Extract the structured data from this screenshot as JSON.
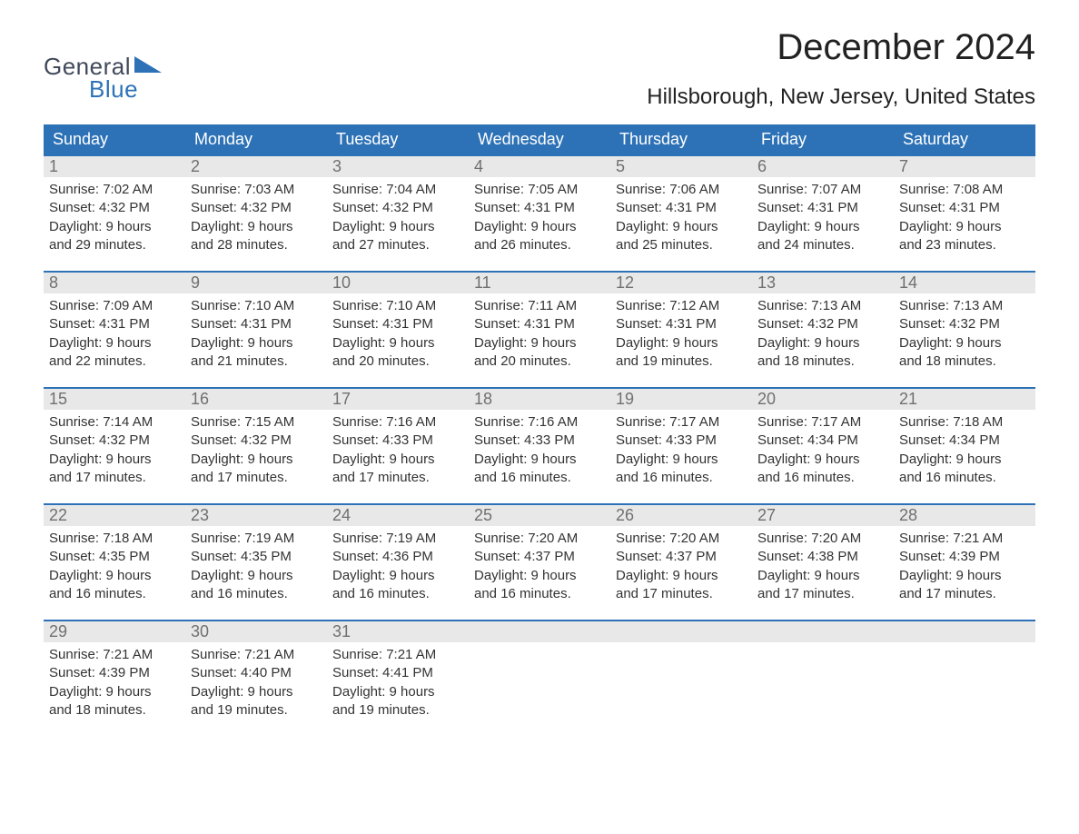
{
  "brand": {
    "word1": "General",
    "word2": "Blue"
  },
  "title": {
    "month": "December 2024",
    "location": "Hillsborough, New Jersey, United States"
  },
  "style": {
    "header_bg": "#2d72b7",
    "header_text": "#ffffff",
    "daynum_bg": "#e8e8e8",
    "daynum_text": "#707070",
    "week_border": "#2d72b7",
    "body_text": "#333333",
    "title_fontsize": 40,
    "loc_fontsize": 24,
    "dow_fontsize": 18,
    "cell_fontsize": 15,
    "page_bg": "#ffffff"
  },
  "days_of_week": [
    "Sunday",
    "Monday",
    "Tuesday",
    "Wednesday",
    "Thursday",
    "Friday",
    "Saturday"
  ],
  "weeks": [
    [
      {
        "n": "1",
        "sunrise": "Sunrise: 7:02 AM",
        "sunset": "Sunset: 4:32 PM",
        "dl1": "Daylight: 9 hours",
        "dl2": "and 29 minutes."
      },
      {
        "n": "2",
        "sunrise": "Sunrise: 7:03 AM",
        "sunset": "Sunset: 4:32 PM",
        "dl1": "Daylight: 9 hours",
        "dl2": "and 28 minutes."
      },
      {
        "n": "3",
        "sunrise": "Sunrise: 7:04 AM",
        "sunset": "Sunset: 4:32 PM",
        "dl1": "Daylight: 9 hours",
        "dl2": "and 27 minutes."
      },
      {
        "n": "4",
        "sunrise": "Sunrise: 7:05 AM",
        "sunset": "Sunset: 4:31 PM",
        "dl1": "Daylight: 9 hours",
        "dl2": "and 26 minutes."
      },
      {
        "n": "5",
        "sunrise": "Sunrise: 7:06 AM",
        "sunset": "Sunset: 4:31 PM",
        "dl1": "Daylight: 9 hours",
        "dl2": "and 25 minutes."
      },
      {
        "n": "6",
        "sunrise": "Sunrise: 7:07 AM",
        "sunset": "Sunset: 4:31 PM",
        "dl1": "Daylight: 9 hours",
        "dl2": "and 24 minutes."
      },
      {
        "n": "7",
        "sunrise": "Sunrise: 7:08 AM",
        "sunset": "Sunset: 4:31 PM",
        "dl1": "Daylight: 9 hours",
        "dl2": "and 23 minutes."
      }
    ],
    [
      {
        "n": "8",
        "sunrise": "Sunrise: 7:09 AM",
        "sunset": "Sunset: 4:31 PM",
        "dl1": "Daylight: 9 hours",
        "dl2": "and 22 minutes."
      },
      {
        "n": "9",
        "sunrise": "Sunrise: 7:10 AM",
        "sunset": "Sunset: 4:31 PM",
        "dl1": "Daylight: 9 hours",
        "dl2": "and 21 minutes."
      },
      {
        "n": "10",
        "sunrise": "Sunrise: 7:10 AM",
        "sunset": "Sunset: 4:31 PM",
        "dl1": "Daylight: 9 hours",
        "dl2": "and 20 minutes."
      },
      {
        "n": "11",
        "sunrise": "Sunrise: 7:11 AM",
        "sunset": "Sunset: 4:31 PM",
        "dl1": "Daylight: 9 hours",
        "dl2": "and 20 minutes."
      },
      {
        "n": "12",
        "sunrise": "Sunrise: 7:12 AM",
        "sunset": "Sunset: 4:31 PM",
        "dl1": "Daylight: 9 hours",
        "dl2": "and 19 minutes."
      },
      {
        "n": "13",
        "sunrise": "Sunrise: 7:13 AM",
        "sunset": "Sunset: 4:32 PM",
        "dl1": "Daylight: 9 hours",
        "dl2": "and 18 minutes."
      },
      {
        "n": "14",
        "sunrise": "Sunrise: 7:13 AM",
        "sunset": "Sunset: 4:32 PM",
        "dl1": "Daylight: 9 hours",
        "dl2": "and 18 minutes."
      }
    ],
    [
      {
        "n": "15",
        "sunrise": "Sunrise: 7:14 AM",
        "sunset": "Sunset: 4:32 PM",
        "dl1": "Daylight: 9 hours",
        "dl2": "and 17 minutes."
      },
      {
        "n": "16",
        "sunrise": "Sunrise: 7:15 AM",
        "sunset": "Sunset: 4:32 PM",
        "dl1": "Daylight: 9 hours",
        "dl2": "and 17 minutes."
      },
      {
        "n": "17",
        "sunrise": "Sunrise: 7:16 AM",
        "sunset": "Sunset: 4:33 PM",
        "dl1": "Daylight: 9 hours",
        "dl2": "and 17 minutes."
      },
      {
        "n": "18",
        "sunrise": "Sunrise: 7:16 AM",
        "sunset": "Sunset: 4:33 PM",
        "dl1": "Daylight: 9 hours",
        "dl2": "and 16 minutes."
      },
      {
        "n": "19",
        "sunrise": "Sunrise: 7:17 AM",
        "sunset": "Sunset: 4:33 PM",
        "dl1": "Daylight: 9 hours",
        "dl2": "and 16 minutes."
      },
      {
        "n": "20",
        "sunrise": "Sunrise: 7:17 AM",
        "sunset": "Sunset: 4:34 PM",
        "dl1": "Daylight: 9 hours",
        "dl2": "and 16 minutes."
      },
      {
        "n": "21",
        "sunrise": "Sunrise: 7:18 AM",
        "sunset": "Sunset: 4:34 PM",
        "dl1": "Daylight: 9 hours",
        "dl2": "and 16 minutes."
      }
    ],
    [
      {
        "n": "22",
        "sunrise": "Sunrise: 7:18 AM",
        "sunset": "Sunset: 4:35 PM",
        "dl1": "Daylight: 9 hours",
        "dl2": "and 16 minutes."
      },
      {
        "n": "23",
        "sunrise": "Sunrise: 7:19 AM",
        "sunset": "Sunset: 4:35 PM",
        "dl1": "Daylight: 9 hours",
        "dl2": "and 16 minutes."
      },
      {
        "n": "24",
        "sunrise": "Sunrise: 7:19 AM",
        "sunset": "Sunset: 4:36 PM",
        "dl1": "Daylight: 9 hours",
        "dl2": "and 16 minutes."
      },
      {
        "n": "25",
        "sunrise": "Sunrise: 7:20 AM",
        "sunset": "Sunset: 4:37 PM",
        "dl1": "Daylight: 9 hours",
        "dl2": "and 16 minutes."
      },
      {
        "n": "26",
        "sunrise": "Sunrise: 7:20 AM",
        "sunset": "Sunset: 4:37 PM",
        "dl1": "Daylight: 9 hours",
        "dl2": "and 17 minutes."
      },
      {
        "n": "27",
        "sunrise": "Sunrise: 7:20 AM",
        "sunset": "Sunset: 4:38 PM",
        "dl1": "Daylight: 9 hours",
        "dl2": "and 17 minutes."
      },
      {
        "n": "28",
        "sunrise": "Sunrise: 7:21 AM",
        "sunset": "Sunset: 4:39 PM",
        "dl1": "Daylight: 9 hours",
        "dl2": "and 17 minutes."
      }
    ],
    [
      {
        "n": "29",
        "sunrise": "Sunrise: 7:21 AM",
        "sunset": "Sunset: 4:39 PM",
        "dl1": "Daylight: 9 hours",
        "dl2": "and 18 minutes."
      },
      {
        "n": "30",
        "sunrise": "Sunrise: 7:21 AM",
        "sunset": "Sunset: 4:40 PM",
        "dl1": "Daylight: 9 hours",
        "dl2": "and 19 minutes."
      },
      {
        "n": "31",
        "sunrise": "Sunrise: 7:21 AM",
        "sunset": "Sunset: 4:41 PM",
        "dl1": "Daylight: 9 hours",
        "dl2": "and 19 minutes."
      },
      {
        "empty": true
      },
      {
        "empty": true
      },
      {
        "empty": true
      },
      {
        "empty": true
      }
    ]
  ]
}
